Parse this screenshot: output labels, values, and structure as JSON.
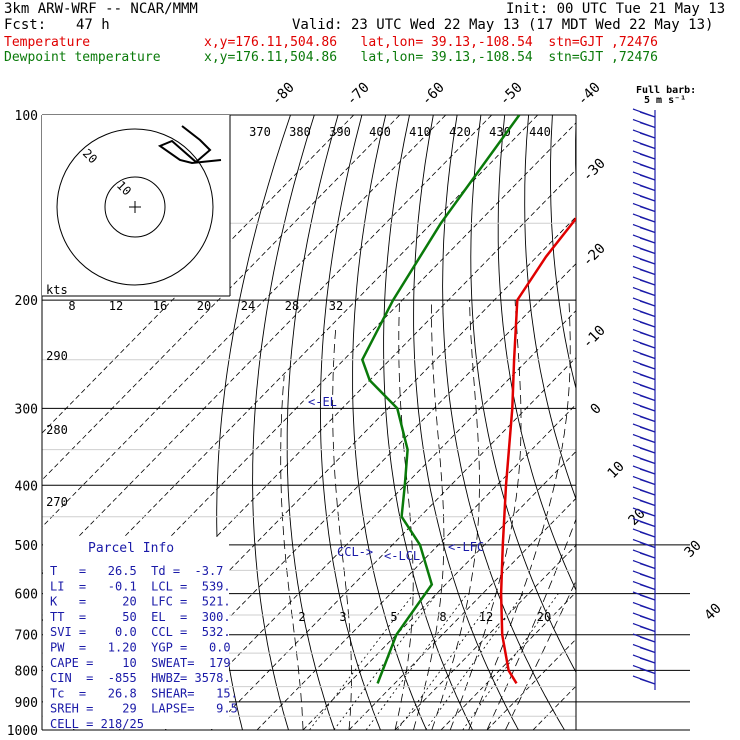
{
  "header": {
    "model": "3km ARW-WRF -- NCAR/MMM",
    "init": "Init: 00 UTC Tue 21 May 13",
    "fcst_label": "Fcst:",
    "fcst_value": "47 h",
    "valid": "Valid: 23 UTC Wed 22 May 13 (17 MDT Wed 22 May 13)",
    "temp_label": "Temperature",
    "temp_info": "x,y=176.11,504.86   lat,lon= 39.13,-108.54  stn=GJT ,72476",
    "dew_label": "Dewpoint temperature",
    "dew_info": "x,y=176.11,504.86   lat,lon= 39.13,-108.54  stn=GJT ,72476"
  },
  "barb_legend": {
    "line1": "Full barb:",
    "line2": "5 m s⁻¹"
  },
  "colors": {
    "temperature": "#e00000",
    "dewpoint": "#0a7a0a",
    "barbs": "#1a1aa8",
    "info": "#1a1aa8"
  },
  "chart_data": {
    "type": "skew-t",
    "pressure_levels": [
      100,
      200,
      300,
      400,
      500,
      600,
      700,
      800,
      900,
      1000
    ],
    "skewed_isotherm_labels": [
      -80,
      -70,
      -60,
      -50,
      -40,
      -30,
      -20,
      -10,
      0,
      10,
      20,
      30,
      40
    ],
    "theta_labels": [
      370,
      380,
      390,
      400,
      410,
      420,
      430,
      440
    ],
    "hodograph_speed_labels": [
      "8",
      "12",
      "16",
      "20",
      "24",
      "28",
      "32"
    ],
    "hodograph_unit": "kts",
    "hodograph_ring_labels": [
      "10",
      "20"
    ],
    "dry_adiabat_labels": [
      "290",
      "280",
      "270"
    ],
    "mixing_ratio_labels": [
      "2",
      "3",
      "5",
      "8",
      "12",
      "20"
    ],
    "temperature_profile": [
      {
        "p": 840,
        "t": 26.5
      },
      {
        "p": 800,
        "t": 22
      },
      {
        "p": 700,
        "t": 13
      },
      {
        "p": 600,
        "t": 4
      },
      {
        "p": 500,
        "t": -6
      },
      {
        "p": 400,
        "t": -18
      },
      {
        "p": 300,
        "t": -33
      },
      {
        "p": 250,
        "t": -43
      },
      {
        "p": 200,
        "t": -55
      },
      {
        "p": 170,
        "t": -58
      },
      {
        "p": 130,
        "t": -61
      },
      {
        "p": 100,
        "t": -62
      }
    ],
    "dewpoint_profile": [
      {
        "p": 840,
        "t": -3.7
      },
      {
        "p": 700,
        "t": -10
      },
      {
        "p": 580,
        "t": -13
      },
      {
        "p": 500,
        "t": -24
      },
      {
        "p": 450,
        "t": -34
      },
      {
        "p": 400,
        "t": -40
      },
      {
        "p": 350,
        "t": -47
      },
      {
        "p": 300,
        "t": -58
      },
      {
        "p": 270,
        "t": -70
      },
      {
        "p": 250,
        "t": -76
      },
      {
        "p": 200,
        "t": -82
      },
      {
        "p": 150,
        "t": -88
      },
      {
        "p": 100,
        "t": -94
      }
    ],
    "level_markers": [
      {
        "label": "<-EL",
        "p": 300,
        "t": -35
      },
      {
        "label": "CCL->",
        "p": 532,
        "t": -10
      },
      {
        "label": "<-LCL",
        "p": 539,
        "t": -5
      },
      {
        "label": "<-LFC",
        "p": 521,
        "t": 8
      }
    ]
  },
  "parcel_info": {
    "title": "Parcel Info",
    "rows": [
      "T   =   26.5  Td =  -3.7",
      "LI  =   -0.1  LCL =  539.",
      "K   =     20  LFC =  521.",
      "TT  =     50  EL  =  300.",
      "SVI =    0.0  CCL =  532.",
      "PW  =   1.20  YGP =   0.0",
      "CAPE =    10  SWEAT=  179",
      "CIN  =  -855  HWBZ= 3578.",
      "Tc  =   26.8  SHEAR=   15.",
      "SREH =    29  LAPSE=   9.5",
      "CELL = 218/25"
    ]
  }
}
